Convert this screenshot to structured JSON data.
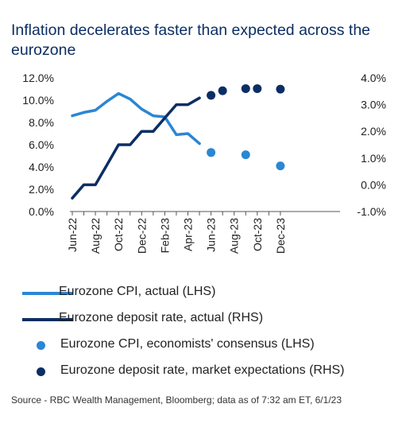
{
  "title": "Inflation decelerates faster than expected across the eurozone",
  "source": "Source - RBC Wealth Management, Bloomberg; data as of 7:32 am ET, 6/1/23",
  "chart_data": {
    "type": "line",
    "x_tick_labels": [
      "Jun-22",
      "Aug-22",
      "Oct-22",
      "Dec-22",
      "Feb-23",
      "Apr-23",
      "Jun-23",
      "Aug-23",
      "Oct-23",
      "Dec-23"
    ],
    "y_left": {
      "ticks": [
        "0.0%",
        "2.0%",
        "4.0%",
        "6.0%",
        "8.0%",
        "10.0%",
        "12.0%"
      ],
      "range": [
        0,
        12
      ]
    },
    "y_right": {
      "ticks": [
        "-1.0%",
        "0.0%",
        "1.0%",
        "2.0%",
        "3.0%",
        "4.0%"
      ],
      "range": [
        -1,
        4
      ]
    },
    "grid": false,
    "legend_position": "bottom",
    "series": [
      {
        "name": "Eurozone CPI, actual (LHS)",
        "axis": "left",
        "style": "line",
        "color": "#2b86d3",
        "x": [
          "2022-06",
          "2022-07",
          "2022-08",
          "2022-09",
          "2022-10",
          "2022-11",
          "2022-12",
          "2023-01",
          "2023-02",
          "2023-03",
          "2023-04",
          "2023-05"
        ],
        "values": [
          8.6,
          8.9,
          9.1,
          9.9,
          10.6,
          10.1,
          9.2,
          8.6,
          8.5,
          6.9,
          7.0,
          6.1
        ]
      },
      {
        "name": "Eurozone deposit rate, actual (RHS)",
        "axis": "right",
        "style": "line",
        "color": "#0b2e63",
        "x": [
          "2022-06",
          "2022-07",
          "2022-08",
          "2022-09",
          "2022-10",
          "2022-11",
          "2022-12",
          "2023-01",
          "2023-02",
          "2023-03",
          "2023-04",
          "2023-05"
        ],
        "values": [
          -0.5,
          0.0,
          0.0,
          0.75,
          1.5,
          1.5,
          2.0,
          2.0,
          2.5,
          3.0,
          3.0,
          3.25
        ]
      },
      {
        "name": "Eurozone CPI, economists' consensus (LHS)",
        "axis": "left",
        "style": "dot",
        "color": "#2b86d3",
        "x": [
          "2023-06",
          "2023-09",
          "2023-12"
        ],
        "values": [
          5.3,
          5.1,
          4.1
        ]
      },
      {
        "name": "Eurozone deposit rate, market expectations (RHS)",
        "axis": "right",
        "style": "dot",
        "color": "#0b2e63",
        "x": [
          "2023-06",
          "2023-07",
          "2023-09",
          "2023-10",
          "2023-12"
        ],
        "values": [
          3.35,
          3.52,
          3.6,
          3.6,
          3.58
        ]
      }
    ]
  }
}
